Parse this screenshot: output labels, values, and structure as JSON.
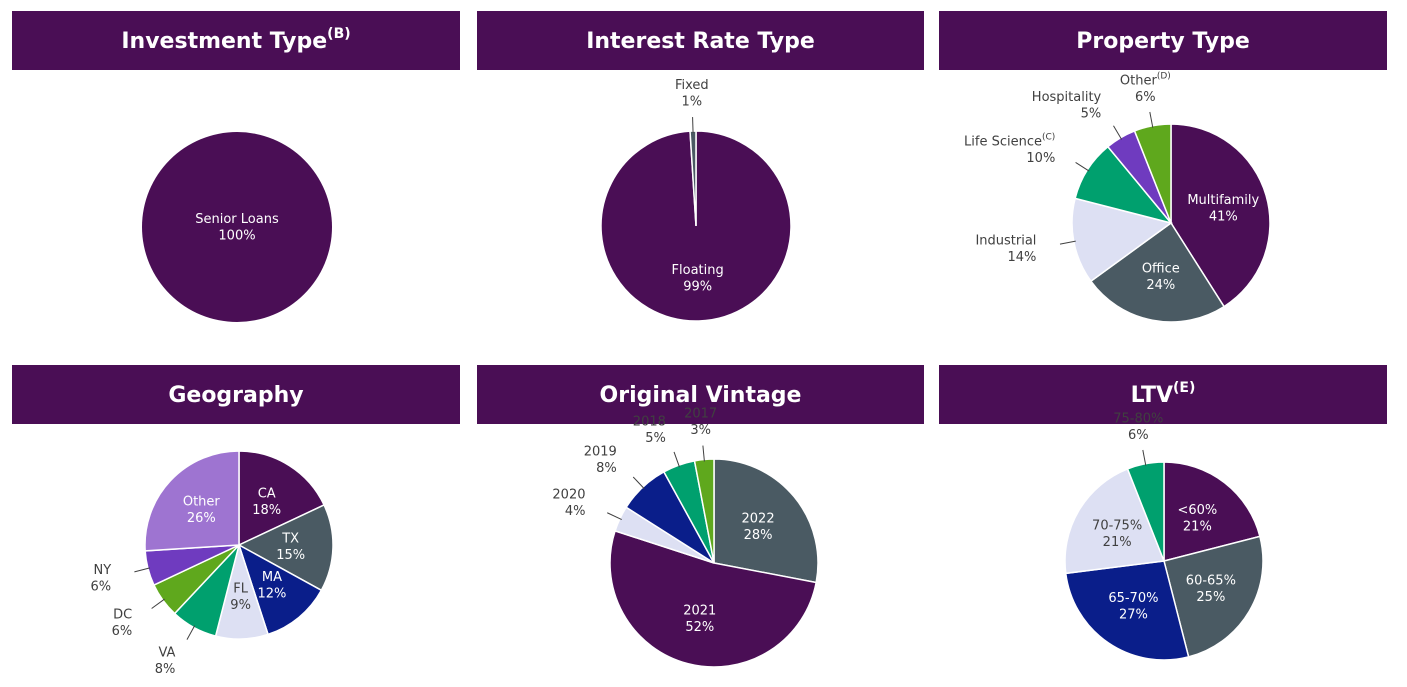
{
  "chart_data": [
    {
      "type": "pie",
      "title": "Investment Type",
      "title_note": "(B)",
      "categories": [
        "Senior Loans"
      ],
      "values": [
        100
      ],
      "value_labels": [
        "100%"
      ],
      "colors": [
        "#4a0e55"
      ]
    },
    {
      "type": "pie",
      "title": "Interest Rate Type",
      "categories": [
        "Floating",
        "Fixed"
      ],
      "values": [
        99,
        1
      ],
      "value_labels": [
        "99%",
        "1%"
      ],
      "colors": [
        "#4a0e55",
        "#4a5a63"
      ]
    },
    {
      "type": "pie",
      "title": "Property Type",
      "categories": [
        "Multifamily",
        "Office",
        "Industrial",
        "Life Science",
        "Hospitality",
        "Other"
      ],
      "category_notes": [
        null,
        null,
        null,
        "(C)",
        null,
        "(D)"
      ],
      "values": [
        41,
        24,
        14,
        10,
        5,
        6
      ],
      "value_labels": [
        "41%",
        "24%",
        "14%",
        "10%",
        "5%",
        "6%"
      ],
      "colors": [
        "#4a0e55",
        "#4a5a63",
        "#dde0f3",
        "#00a06e",
        "#6f3bbf",
        "#5fa81d"
      ]
    },
    {
      "type": "pie",
      "title": "Geography",
      "categories": [
        "CA",
        "TX",
        "MA",
        "FL",
        "VA",
        "DC",
        "NY",
        "Other"
      ],
      "values": [
        18,
        15,
        12,
        9,
        8,
        6,
        6,
        26
      ],
      "value_labels": [
        "18%",
        "15%",
        "12%",
        "9%",
        "8%",
        "6%",
        "6%",
        "26%"
      ],
      "colors": [
        "#4a0e55",
        "#4a5a63",
        "#0a1e8a",
        "#dde0f3",
        "#00a06e",
        "#5fa81d",
        "#6f3bbf",
        "#9e74d1"
      ]
    },
    {
      "type": "pie",
      "title": "Original Vintage",
      "categories": [
        "2022",
        "2021",
        "2020",
        "2019",
        "2018",
        "2017"
      ],
      "values": [
        28,
        52,
        4,
        8,
        5,
        3
      ],
      "value_labels": [
        "28%",
        "52%",
        "4%",
        "8%",
        "5%",
        "3%"
      ],
      "colors": [
        "#4a5a63",
        "#4a0e55",
        "#dde0f3",
        "#0a1e8a",
        "#00a06e",
        "#5fa81d"
      ]
    },
    {
      "type": "pie",
      "title": "LTV",
      "title_note": "(E)",
      "categories": [
        "<60%",
        "60-65%",
        "65-70%",
        "70-75%",
        "75-80%"
      ],
      "values": [
        21,
        25,
        27,
        21,
        6
      ],
      "value_labels": [
        "21%",
        "25%",
        "27%",
        "21%",
        "6%"
      ],
      "colors": [
        "#4a0e55",
        "#4a5a63",
        "#0a1e8a",
        "#dde0f3",
        "#00a06e"
      ]
    }
  ]
}
